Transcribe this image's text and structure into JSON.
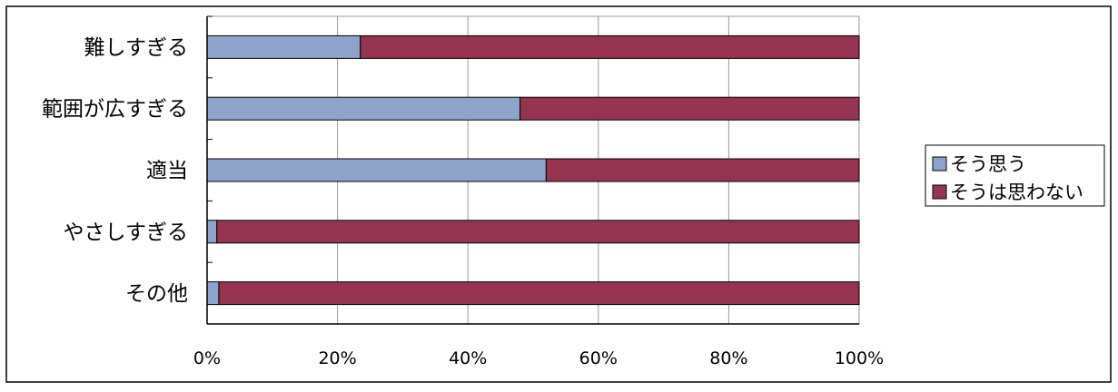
{
  "chart_data": {
    "type": "bar",
    "orientation": "horizontal",
    "stacked": "percent",
    "categories": [
      "難しすぎる",
      "範囲が広すぎる",
      "適当",
      "やさしすぎる",
      "その他"
    ],
    "series": [
      {
        "name": "そう思う",
        "values": [
          23.5,
          48,
          52,
          1.5,
          1.8
        ],
        "color": "#8DA3CC"
      },
      {
        "name": "そうは思わない",
        "values": [
          76.5,
          52,
          48,
          98.5,
          98.2
        ],
        "color": "#963350"
      }
    ],
    "xlim": [
      0,
      100
    ],
    "x_ticks": [
      "0%",
      "20%",
      "40%",
      "60%",
      "80%",
      "100%"
    ],
    "grid": true,
    "legend_position": "right"
  }
}
